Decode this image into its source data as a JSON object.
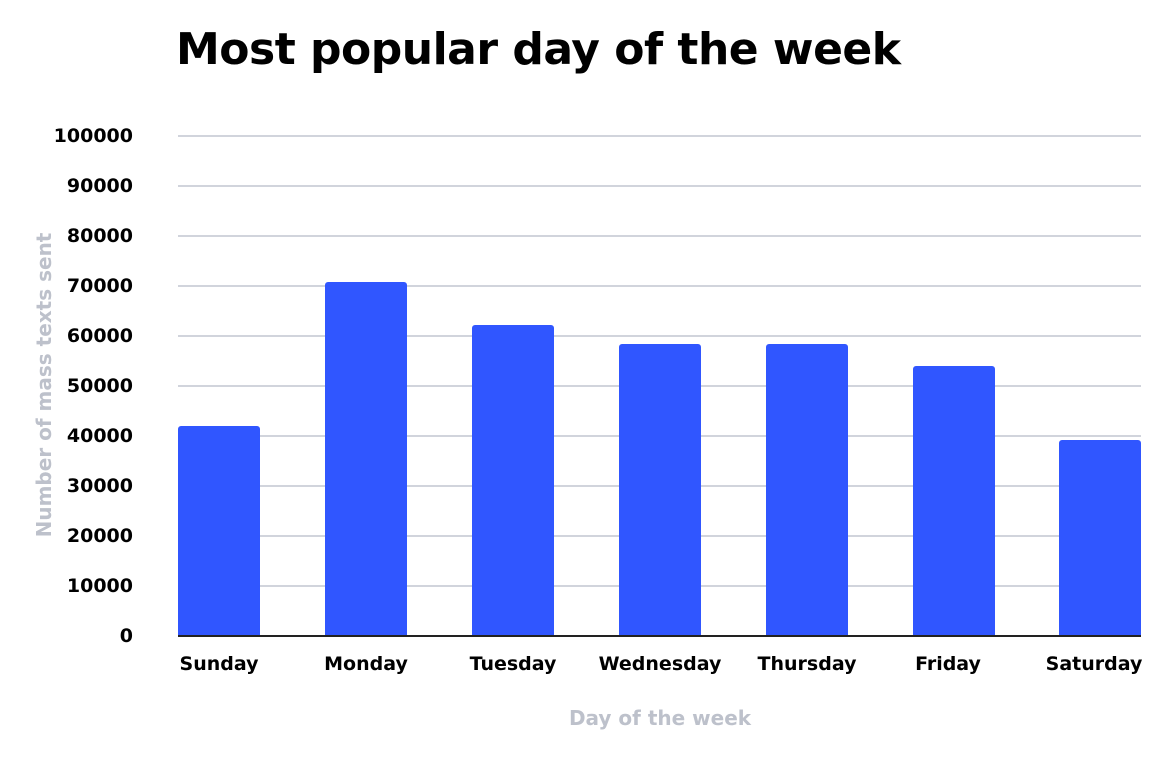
{
  "chart_data": {
    "type": "bar",
    "title": "Most popular day of the week",
    "xlabel": "Day of the week",
    "ylabel": "Number of mass texts sent",
    "categories": [
      "Sunday",
      "Monday",
      "Tuesday",
      "Wednesday",
      "Thursday",
      "Friday",
      "Saturday"
    ],
    "values": [
      42000,
      70700,
      62000,
      58200,
      58200,
      53800,
      39200
    ],
    "ylim": [
      0,
      100000
    ],
    "yticks": [
      "0",
      "10000",
      "20000",
      "30000",
      "40000",
      "50000",
      "60000",
      "70000",
      "80000",
      "90000",
      "100000"
    ],
    "grid": true,
    "legend": null,
    "bar_color": "#3056ff"
  }
}
